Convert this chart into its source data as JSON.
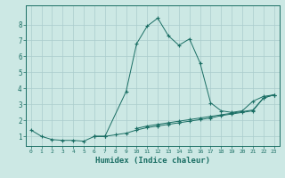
{
  "title": "",
  "xlabel": "Humidex (Indice chaleur)",
  "background_color": "#cce8e4",
  "line_color": "#1a6e64",
  "grid_color": "#aacccc",
  "xlim": [
    -0.5,
    23.5
  ],
  "ylim": [
    0.4,
    9.2
  ],
  "xticks": [
    0,
    1,
    2,
    3,
    4,
    5,
    6,
    7,
    8,
    9,
    10,
    11,
    12,
    13,
    14,
    15,
    16,
    17,
    18,
    19,
    20,
    21,
    22,
    23
  ],
  "yticks": [
    1,
    2,
    3,
    4,
    5,
    6,
    7,
    8
  ],
  "line1_x": [
    0,
    1,
    2,
    3,
    4,
    5,
    6,
    7
  ],
  "line1_y": [
    1.4,
    1.0,
    0.8,
    0.75,
    0.75,
    0.7,
    1.0,
    1.0
  ],
  "line2_x": [
    6,
    7,
    9,
    10,
    11,
    12,
    13,
    14,
    15,
    16,
    17,
    18,
    19,
    20,
    21,
    22,
    23
  ],
  "line2_y": [
    1.0,
    1.0,
    3.8,
    6.8,
    7.9,
    8.4,
    7.3,
    6.7,
    7.1,
    5.6,
    3.1,
    2.6,
    2.5,
    2.6,
    3.2,
    3.5,
    3.6
  ],
  "line3_x": [
    10,
    11,
    12,
    13,
    14,
    15,
    16,
    17,
    18,
    19,
    20,
    21,
    22,
    23
  ],
  "line3_y": [
    1.5,
    1.65,
    1.75,
    1.85,
    1.95,
    2.05,
    2.15,
    2.25,
    2.35,
    2.45,
    2.55,
    2.65,
    3.4,
    3.6
  ],
  "line4_x": [
    6,
    7,
    8,
    9,
    10,
    11,
    12,
    13,
    14,
    15,
    16,
    17,
    18,
    19,
    20,
    21,
    22,
    23
  ],
  "line4_y": [
    1.0,
    1.0,
    1.1,
    1.2,
    1.4,
    1.55,
    1.65,
    1.75,
    1.85,
    1.95,
    2.05,
    2.15,
    2.3,
    2.4,
    2.5,
    2.6,
    3.4,
    3.6
  ]
}
